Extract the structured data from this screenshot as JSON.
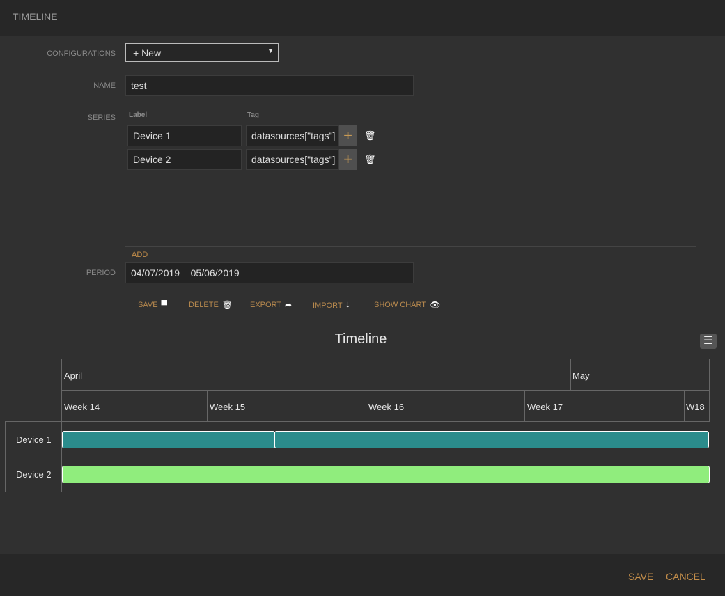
{
  "header": {
    "title": "TIMELINE"
  },
  "form": {
    "configurations": {
      "label": "CONFIGURATIONS",
      "value": "+ New"
    },
    "name": {
      "label": "NAME",
      "value": "test"
    },
    "series": {
      "label": "SERIES",
      "col_label": "Label",
      "col_tag": "Tag",
      "rows": [
        {
          "label": "Device 1",
          "tag": "datasources[\"tags\"]"
        },
        {
          "label": "Device 2",
          "tag": "datasources[\"tags\"]"
        }
      ],
      "add_label": "ADD"
    },
    "period": {
      "label": "PERIOD",
      "value": "04/07/2019 – 05/06/2019"
    }
  },
  "actions": [
    {
      "label": "SAVE",
      "icon": "save-icon"
    },
    {
      "label": "DELETE",
      "icon": "trash-icon"
    },
    {
      "label": "EXPORT",
      "icon": "share-icon"
    },
    {
      "label": "IMPORT",
      "icon": "download-icon"
    },
    {
      "label": "SHOW CHART",
      "icon": "eye-icon"
    }
  ],
  "chart_data": {
    "type": "gantt",
    "title": "Timeline",
    "months": [
      "April",
      "May"
    ],
    "weeks": [
      "Week 14",
      "Week 15",
      "Week 16",
      "Week 17",
      "W18"
    ],
    "categories": [
      "Device 1",
      "Device 2"
    ],
    "series": [
      {
        "category": "Device 1",
        "color": "#2b8c8c",
        "segments": 2
      },
      {
        "category": "Device 2",
        "color": "#90ed7d",
        "segments": 1
      }
    ]
  },
  "footer": {
    "save": "SAVE",
    "cancel": "CANCEL"
  }
}
